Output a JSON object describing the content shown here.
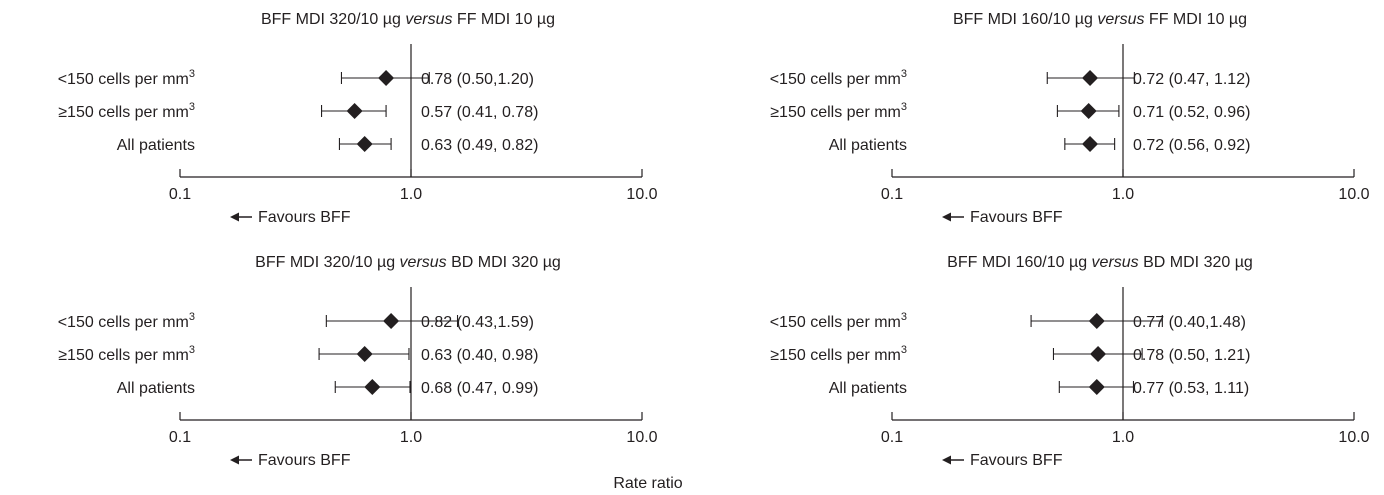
{
  "figure": {
    "shared_xlabel": "Rate ratio"
  },
  "chart_data": [
    {
      "type": "forest",
      "title_parts": [
        "BFF MDI 320/10 µg ",
        "versus",
        " FF MDI 10 µg"
      ],
      "xscale": "log",
      "xlim": [
        0.1,
        10.0
      ],
      "xticks": [
        "0.1",
        "1.0",
        "10.0"
      ],
      "reference_line": 1.0,
      "favours_label": "Favours BFF",
      "rows": [
        {
          "label": "<150 cells per mm",
          "sup": "3",
          "estimate": 0.78,
          "ci": [
            0.5,
            1.2
          ],
          "text": "0.78 (0.50,1.20)"
        },
        {
          "label": "≥150 cells per mm",
          "sup": "3",
          "estimate": 0.57,
          "ci": [
            0.41,
            0.78
          ],
          "text": "0.57 (0.41, 0.78)"
        },
        {
          "label": "All patients",
          "sup": "",
          "estimate": 0.63,
          "ci": [
            0.49,
            0.82
          ],
          "text": "0.63 (0.49, 0.82)"
        }
      ]
    },
    {
      "type": "forest",
      "title_parts": [
        "BFF MDI 160/10 µg ",
        "versus",
        " FF MDI 10 µg"
      ],
      "xscale": "log",
      "xlim": [
        0.1,
        10.0
      ],
      "xticks": [
        "0.1",
        "1.0",
        "10.0"
      ],
      "reference_line": 1.0,
      "favours_label": "Favours BFF",
      "rows": [
        {
          "label": "<150 cells per mm",
          "sup": "3",
          "estimate": 0.72,
          "ci": [
            0.47,
            1.12
          ],
          "text": "0.72 (0.47, 1.12)"
        },
        {
          "label": "≥150 cells per mm",
          "sup": "3",
          "estimate": 0.71,
          "ci": [
            0.52,
            0.96
          ],
          "text": "0.71 (0.52, 0.96)"
        },
        {
          "label": "All patients",
          "sup": "",
          "estimate": 0.72,
          "ci": [
            0.56,
            0.92
          ],
          "text": "0.72 (0.56, 0.92)"
        }
      ]
    },
    {
      "type": "forest",
      "title_parts": [
        "BFF MDI 320/10 µg ",
        "versus",
        " BD MDI 320 µg"
      ],
      "xscale": "log",
      "xlim": [
        0.1,
        10.0
      ],
      "xticks": [
        "0.1",
        "1.0",
        "10.0"
      ],
      "reference_line": 1.0,
      "favours_label": "Favours BFF",
      "rows": [
        {
          "label": "<150 cells per mm",
          "sup": "3",
          "estimate": 0.82,
          "ci": [
            0.43,
            1.59
          ],
          "text": "0.82 (0.43,1.59)"
        },
        {
          "label": "≥150 cells per mm",
          "sup": "3",
          "estimate": 0.63,
          "ci": [
            0.4,
            0.98
          ],
          "text": "0.63 (0.40, 0.98)"
        },
        {
          "label": "All patients",
          "sup": "",
          "estimate": 0.68,
          "ci": [
            0.47,
            0.99
          ],
          "text": "0.68 (0.47, 0.99)"
        }
      ]
    },
    {
      "type": "forest",
      "title_parts": [
        "BFF MDI 160/10 µg ",
        "versus",
        " BD MDI 320 µg"
      ],
      "xscale": "log",
      "xlim": [
        0.1,
        10.0
      ],
      "xticks": [
        "0.1",
        "1.0",
        "10.0"
      ],
      "reference_line": 1.0,
      "favours_label": "Favours BFF",
      "rows": [
        {
          "label": "<150 cells per mm",
          "sup": "3",
          "estimate": 0.77,
          "ci": [
            0.4,
            1.48
          ],
          "text": "0.77 (0.40,1.48)"
        },
        {
          "label": "≥150 cells per mm",
          "sup": "3",
          "estimate": 0.78,
          "ci": [
            0.5,
            1.21
          ],
          "text": "0.78 (0.50, 1.21)"
        },
        {
          "label": "All patients",
          "sup": "",
          "estimate": 0.77,
          "ci": [
            0.53,
            1.11
          ],
          "text": "0.77 (0.53, 1.11)"
        }
      ]
    }
  ]
}
